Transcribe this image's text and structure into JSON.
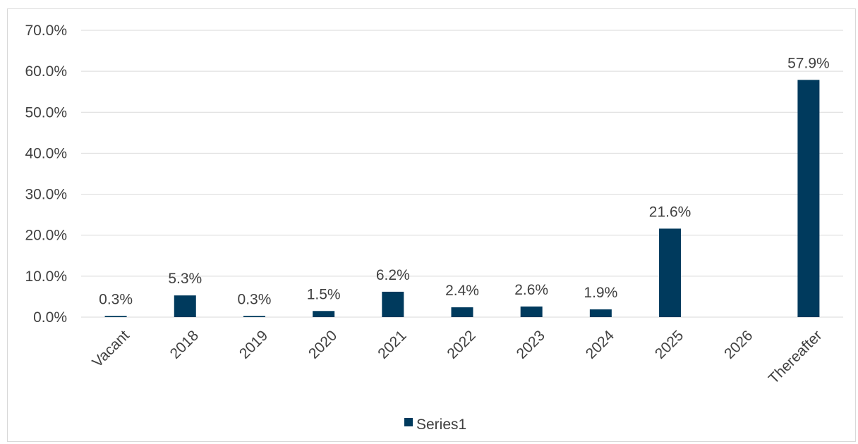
{
  "chart_data": {
    "type": "bar",
    "categories": [
      "Vacant",
      "2018",
      "2019",
      "2020",
      "2021",
      "2022",
      "2023",
      "2024",
      "2025",
      "2026",
      "Thereafter"
    ],
    "series": [
      {
        "name": "Series1",
        "values": [
          0.3,
          5.3,
          0.3,
          1.5,
          6.2,
          2.4,
          2.6,
          1.9,
          21.6,
          null,
          57.9
        ],
        "data_labels": [
          "0.3%",
          "5.3%",
          "0.3%",
          "1.5%",
          "6.2%",
          "2.4%",
          "2.6%",
          "1.9%",
          "21.6%",
          "",
          "57.9%"
        ],
        "color": "#003a5d"
      }
    ],
    "ylim": [
      0,
      70
    ],
    "yticks": [
      "0.0%",
      "10.0%",
      "20.0%",
      "30.0%",
      "40.0%",
      "50.0%",
      "60.0%",
      "70.0%"
    ],
    "grid": true,
    "legend": "bottom",
    "gridline_color": "#d9d9d9"
  }
}
